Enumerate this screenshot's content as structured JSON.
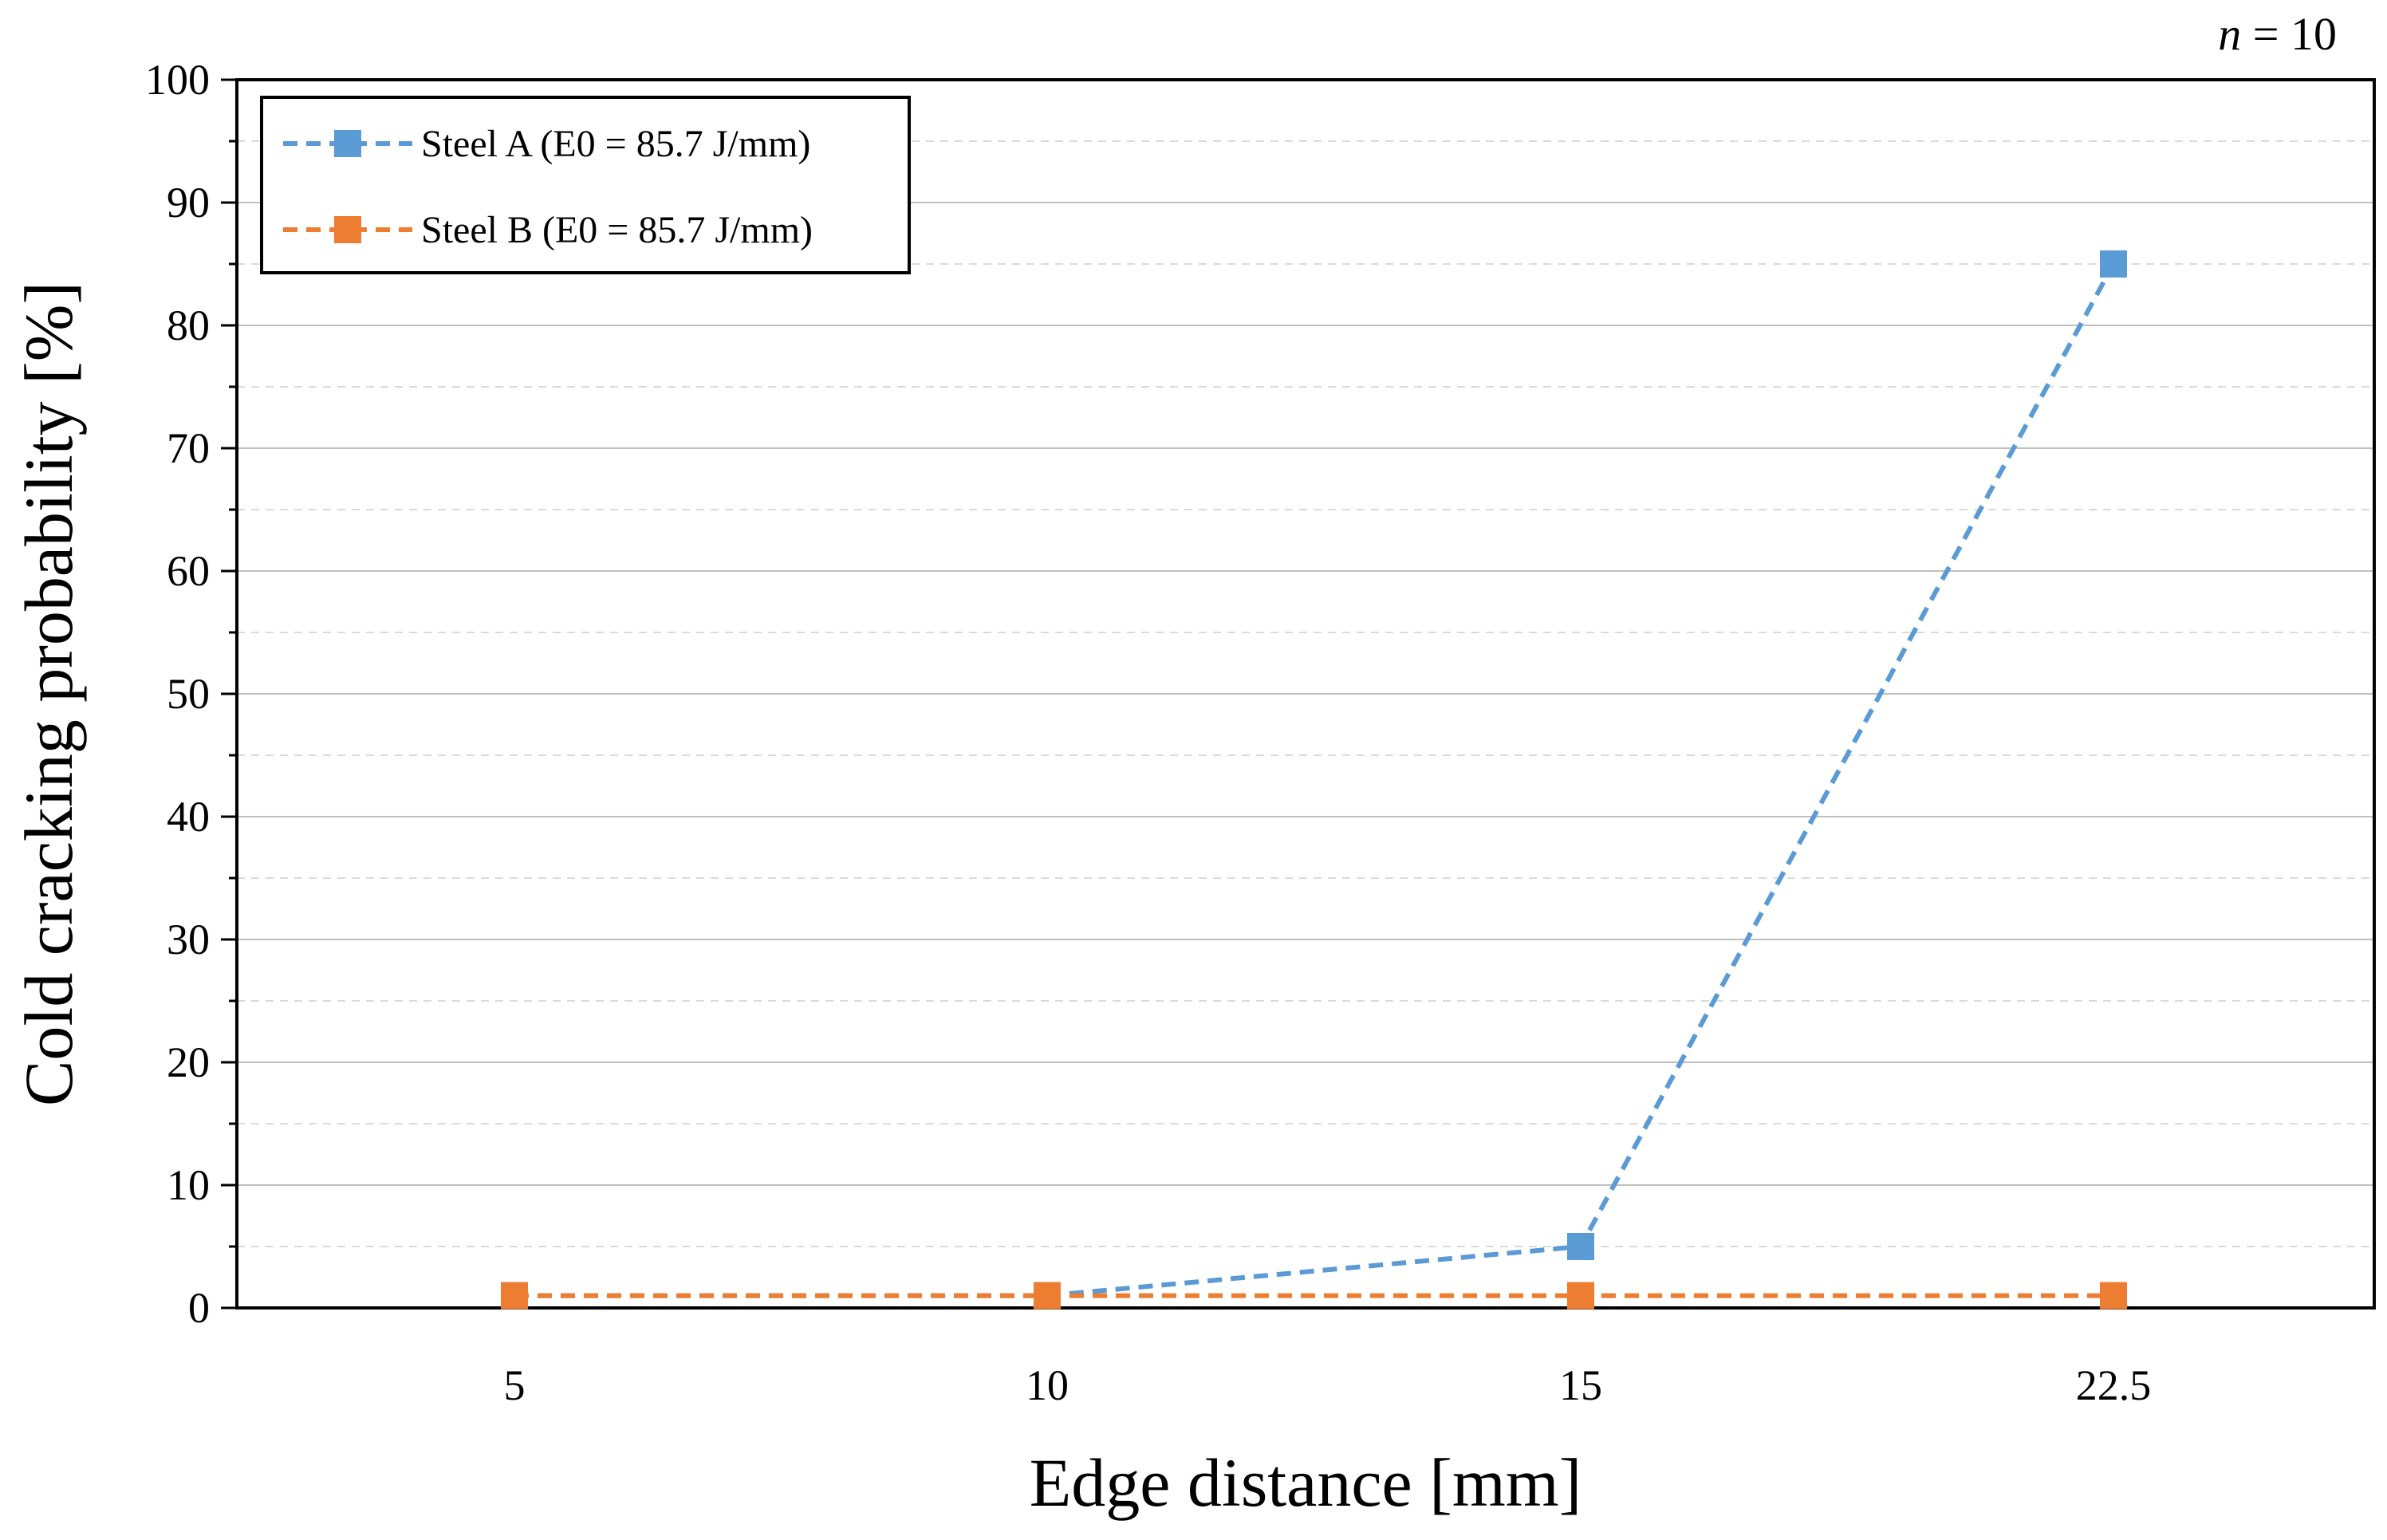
{
  "chart_data": {
    "type": "line",
    "title": "",
    "annotation": {
      "variable": "n",
      "text": " = 10"
    },
    "xlabel": "Edge distance [mm]",
    "ylabel": "Cold cracking probability [%]",
    "categories": [
      "5",
      "10",
      "15",
      "22.5"
    ],
    "ylim": [
      0,
      100
    ],
    "yticks": [
      0,
      10,
      20,
      30,
      40,
      50,
      60,
      70,
      80,
      90,
      100
    ],
    "grid": true,
    "legend_position": "top-left",
    "series": [
      {
        "name": "Steel A (E0 = 85.7 J/mm)",
        "values": [
          1,
          1,
          5,
          85
        ],
        "color": "#5b9bd5",
        "marker": "square",
        "line_style": "dashed"
      },
      {
        "name": "Steel B (E0 = 85.7 J/mm)",
        "values": [
          1,
          1,
          1,
          1
        ],
        "color": "#ed7d31",
        "marker": "square",
        "line_style": "dashed"
      }
    ]
  }
}
